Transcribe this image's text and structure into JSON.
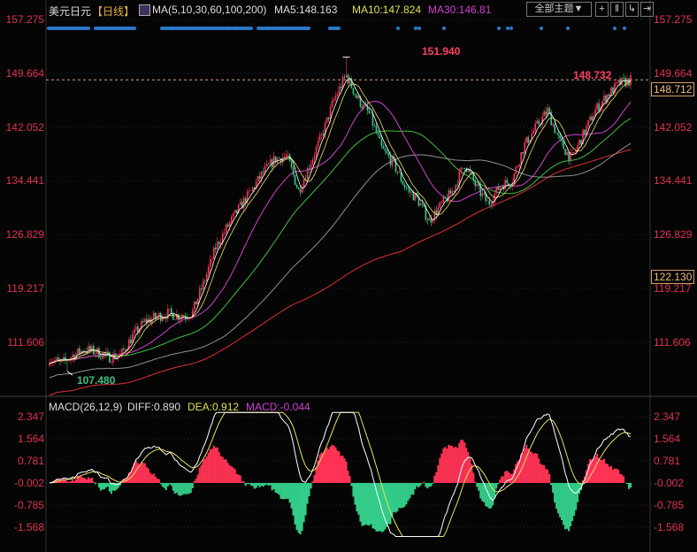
{
  "header": {
    "symbol": "美元日元",
    "period": "【日线】",
    "ma_params": "MA(5,10,30,60,100,200)",
    "ma5": "MA5:148.163",
    "ma10": "MA10:147.824",
    "ma30": "MA30:146.81",
    "theme_button": "全部主题▼",
    "tool_icons": [
      "crosshair-icon",
      "split-icon",
      "chart-in-icon",
      "exit-icon"
    ]
  },
  "price_axis": {
    "labels": [
      "157.275",
      "149.664",
      "142.052",
      "134.441",
      "126.829",
      "119.217",
      "111.606"
    ],
    "current_price": "148.712",
    "cursor_price": "122.130"
  },
  "annotations": {
    "high": "151.940",
    "low": "107.480",
    "last_high": "148.732"
  },
  "macd": {
    "title": "MACD(26,12,9)",
    "diff": "DIFF:0.890",
    "dea": "DEA:0.912",
    "macd": "MACD:-0.044",
    "labels": [
      "2.347",
      "1.564",
      "0.781",
      "-0.002",
      "-0.785",
      "-1.568"
    ]
  },
  "colors": {
    "up": "#ff3355",
    "down": "#33cc88",
    "ma5": "#ffffff",
    "ma10": "#e8e060",
    "ma30": "#d040d0",
    "ma60": "#40c040",
    "ma100": "#909090",
    "ma200": "#e03030"
  },
  "chart_data": {
    "type": "candlestick",
    "title": "美元日元 日线",
    "ylim": [
      104,
      157.275
    ],
    "key_closes": [
      109.4,
      108.6,
      109.8,
      110.6,
      110.2,
      109.5,
      109.8,
      112.5,
      114.5,
      115.2,
      115.7,
      115.3,
      115.7,
      120,
      125,
      128,
      130.6,
      133,
      135.6,
      137.5,
      138,
      133,
      137,
      141,
      146,
      149.4,
      146,
      143.8,
      139,
      136.9,
      133.5,
      131.9,
      128.8,
      131,
      133,
      136.9,
      133.5,
      131.2,
      133.8,
      134.5,
      139.4,
      142,
      144.4,
      140,
      137.5,
      141,
      144.4,
      146.5,
      148.2,
      148.7
    ],
    "high_value": 151.94,
    "low_value": 107.48,
    "candle_count": 330,
    "macd_ylim": [
      -1.9,
      2.5
    ]
  }
}
